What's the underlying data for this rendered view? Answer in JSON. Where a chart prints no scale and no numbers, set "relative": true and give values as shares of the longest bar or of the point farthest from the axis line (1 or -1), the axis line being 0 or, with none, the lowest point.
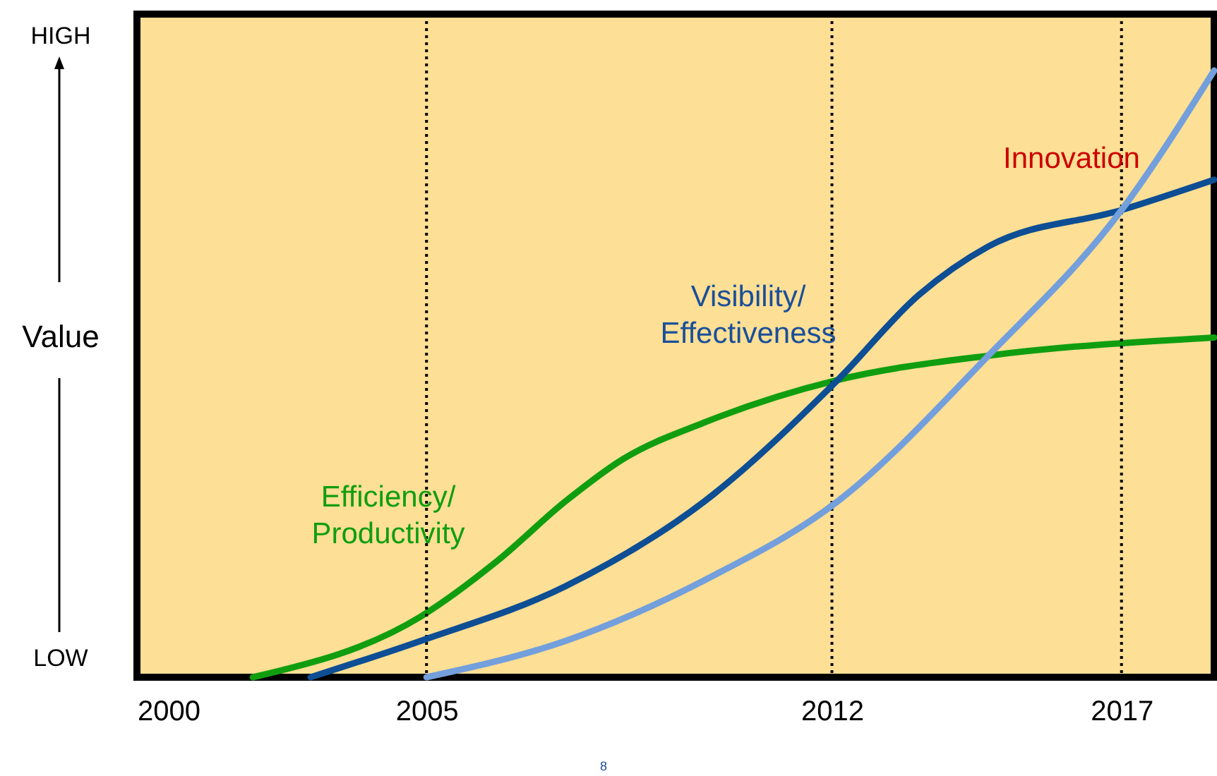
{
  "chart_data": {
    "type": "line",
    "relative": true,
    "ylabel": "Value",
    "annotations": [
      "HIGH",
      "LOW",
      "8"
    ],
    "xlim": [
      2000,
      2018.6
    ],
    "xticks": [
      2000,
      2005,
      2012,
      2017
    ],
    "legend": false,
    "grid": false,
    "marker": "none",
    "line_style": "solid",
    "series": [
      {
        "name": "Efficiency/ Productivity",
        "color": "#109e10",
        "x": [
          2002.0,
          2004.9,
          2006.2,
          2007.4,
          2008.4,
          2009.8,
          2012.1,
          2014.7,
          2018.6
        ],
        "values": [
          0,
          0.1,
          0.19,
          0.29,
          0.36,
          0.42,
          0.49,
          0.53,
          0.56
        ]
      },
      {
        "name": "Visibility/ Effectiveness",
        "color": "#0d4e94",
        "x": [
          2003.0,
          2004.9,
          2007.4,
          2009.8,
          2012.1,
          2013.5,
          2014.7,
          2017.0,
          2018.6
        ],
        "values": [
          0,
          0.06,
          0.15,
          0.29,
          0.49,
          0.63,
          0.71,
          0.77,
          0.82
        ]
      },
      {
        "name": "Innovation",
        "color": "#739fdc",
        "x": [
          2005.0,
          2007.4,
          2009.8,
          2012.1,
          2014.7,
          2017.0,
          2018.6
        ],
        "values": [
          0,
          0.06,
          0.16,
          0.29,
          0.53,
          0.77,
          1.0
        ]
      }
    ],
    "ref_lines": [
      {
        "axis": "x",
        "value": 2005,
        "line_style": "dotted",
        "color": "#000000"
      },
      {
        "axis": "x",
        "value": 2012,
        "line_style": "dotted",
        "color": "#000000"
      },
      {
        "axis": "x",
        "value": 2017,
        "line_style": "dotted",
        "color": "#000000"
      }
    ]
  }
}
